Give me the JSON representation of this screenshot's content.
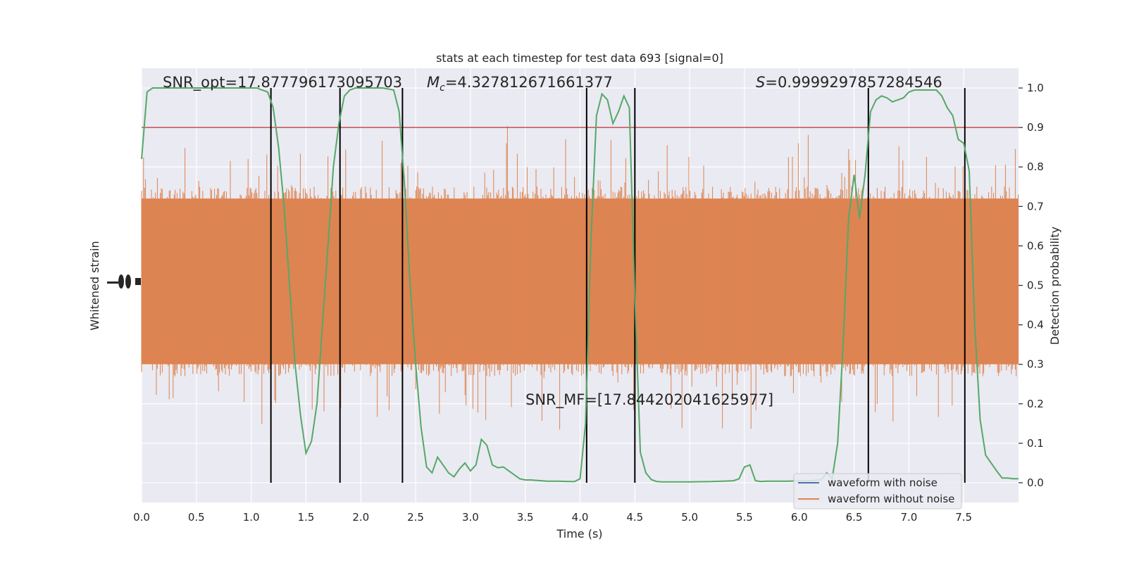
{
  "chart_data": {
    "type": "line",
    "title": "stats at each timestep for test data 693 [signal=0]",
    "xlabel": "Time (s)",
    "ylabel_left": "Whitened strain",
    "ylabel_right": "Detection probability",
    "xlim": [
      0.0,
      8.0
    ],
    "ylim_right": [
      -0.05,
      1.05
    ],
    "x_ticks": [
      "0.0",
      "0.5",
      "1.0",
      "1.5",
      "2.0",
      "2.5",
      "3.0",
      "3.5",
      "4.0",
      "4.5",
      "5.0",
      "5.5",
      "6.0",
      "6.5",
      "7.0",
      "7.5"
    ],
    "y_ticks_right": [
      "0.0",
      "0.1",
      "0.2",
      "0.3",
      "0.4",
      "0.5",
      "0.6",
      "0.7",
      "0.8",
      "0.9",
      "1.0"
    ],
    "grid": true,
    "annotations": {
      "snr_opt": "SNR_opt=17.877796173095703",
      "mc_symbol": "M",
      "mc_sub": "c",
      "mc_value": "=4.327812671661377",
      "s_symbol": "S",
      "s_value": "=0.9999297857284546",
      "snr_mf": "SNR_MF=[17.844202041625977]"
    },
    "threshold": {
      "value": 0.9,
      "color": "#c44e52"
    },
    "vertical_lines": [
      1.18,
      1.81,
      2.38,
      4.06,
      4.5,
      6.63,
      7.51
    ],
    "series": [
      {
        "name": "waveform with noise",
        "color": "#4c72b0"
      },
      {
        "name": "waveform without noise",
        "color": "#dd8452"
      },
      {
        "color": "#55a868",
        "x": [
          0.0,
          0.05,
          0.1,
          0.15,
          0.2,
          0.3,
          0.4,
          0.5,
          0.6,
          0.7,
          0.8,
          0.9,
          1.0,
          1.05,
          1.1,
          1.15,
          1.2,
          1.25,
          1.3,
          1.35,
          1.4,
          1.45,
          1.5,
          1.55,
          1.6,
          1.65,
          1.7,
          1.75,
          1.8,
          1.85,
          1.9,
          1.95,
          2.0,
          2.1,
          2.2,
          2.3,
          2.35,
          2.4,
          2.45,
          2.5,
          2.55,
          2.6,
          2.65,
          2.7,
          2.8,
          2.85,
          2.9,
          2.95,
          3.0,
          3.05,
          3.1,
          3.15,
          3.2,
          3.25,
          3.3,
          3.35,
          3.4,
          3.45,
          3.5,
          3.55,
          3.6,
          3.65,
          3.7,
          3.8,
          3.9,
          3.95,
          4.0,
          4.05,
          4.1,
          4.15,
          4.2,
          4.25,
          4.3,
          4.35,
          4.4,
          4.45,
          4.5,
          4.55,
          4.6,
          4.65,
          4.7,
          4.75,
          4.8,
          4.9,
          5.0,
          5.2,
          5.4,
          5.45,
          5.5,
          5.55,
          5.6,
          5.65,
          5.7,
          5.8,
          5.9,
          6.0,
          6.1,
          6.2,
          6.25,
          6.3,
          6.35,
          6.4,
          6.45,
          6.5,
          6.55,
          6.6,
          6.65,
          6.7,
          6.75,
          6.8,
          6.85,
          6.9,
          6.95,
          7.0,
          7.05,
          7.1,
          7.15,
          7.2,
          7.25,
          7.3,
          7.35,
          7.4,
          7.45,
          7.5,
          7.55,
          7.6,
          7.65,
          7.7,
          7.75,
          7.8,
          7.85,
          7.9,
          7.95,
          8.0
        ],
        "y": [
          0.82,
          0.99,
          1.0,
          1.0,
          1.0,
          1.0,
          1.0,
          1.0,
          1.0,
          1.0,
          1.0,
          1.0,
          1.0,
          1.0,
          0.995,
          0.99,
          0.95,
          0.85,
          0.7,
          0.5,
          0.3,
          0.17,
          0.075,
          0.105,
          0.2,
          0.4,
          0.6,
          0.8,
          0.91,
          0.98,
          0.995,
          1.0,
          1.0,
          1.0,
          1.0,
          0.995,
          0.94,
          0.75,
          0.5,
          0.3,
          0.14,
          0.04,
          0.025,
          0.065,
          0.025,
          0.015,
          0.035,
          0.05,
          0.03,
          0.045,
          0.11,
          0.095,
          0.045,
          0.038,
          0.04,
          0.03,
          0.02,
          0.01,
          0.007,
          0.007,
          0.006,
          0.005,
          0.004,
          0.004,
          0.003,
          0.003,
          0.01,
          0.15,
          0.62,
          0.93,
          0.985,
          0.97,
          0.91,
          0.94,
          0.98,
          0.95,
          0.47,
          0.077,
          0.025,
          0.008,
          0.003,
          0.002,
          0.002,
          0.002,
          0.002,
          0.003,
          0.005,
          0.01,
          0.04,
          0.045,
          0.005,
          0.003,
          0.004,
          0.004,
          0.004,
          0.005,
          0.005,
          0.008,
          0.025,
          0.01,
          0.1,
          0.35,
          0.67,
          0.78,
          0.67,
          0.78,
          0.94,
          0.97,
          0.98,
          0.975,
          0.965,
          0.97,
          0.975,
          0.99,
          0.995,
          0.995,
          0.995,
          0.995,
          0.995,
          0.98,
          0.95,
          0.93,
          0.87,
          0.86,
          0.79,
          0.4,
          0.16,
          0.07,
          0.05,
          0.03,
          0.012,
          0.012,
          0.01,
          0.01
        ]
      }
    ]
  }
}
